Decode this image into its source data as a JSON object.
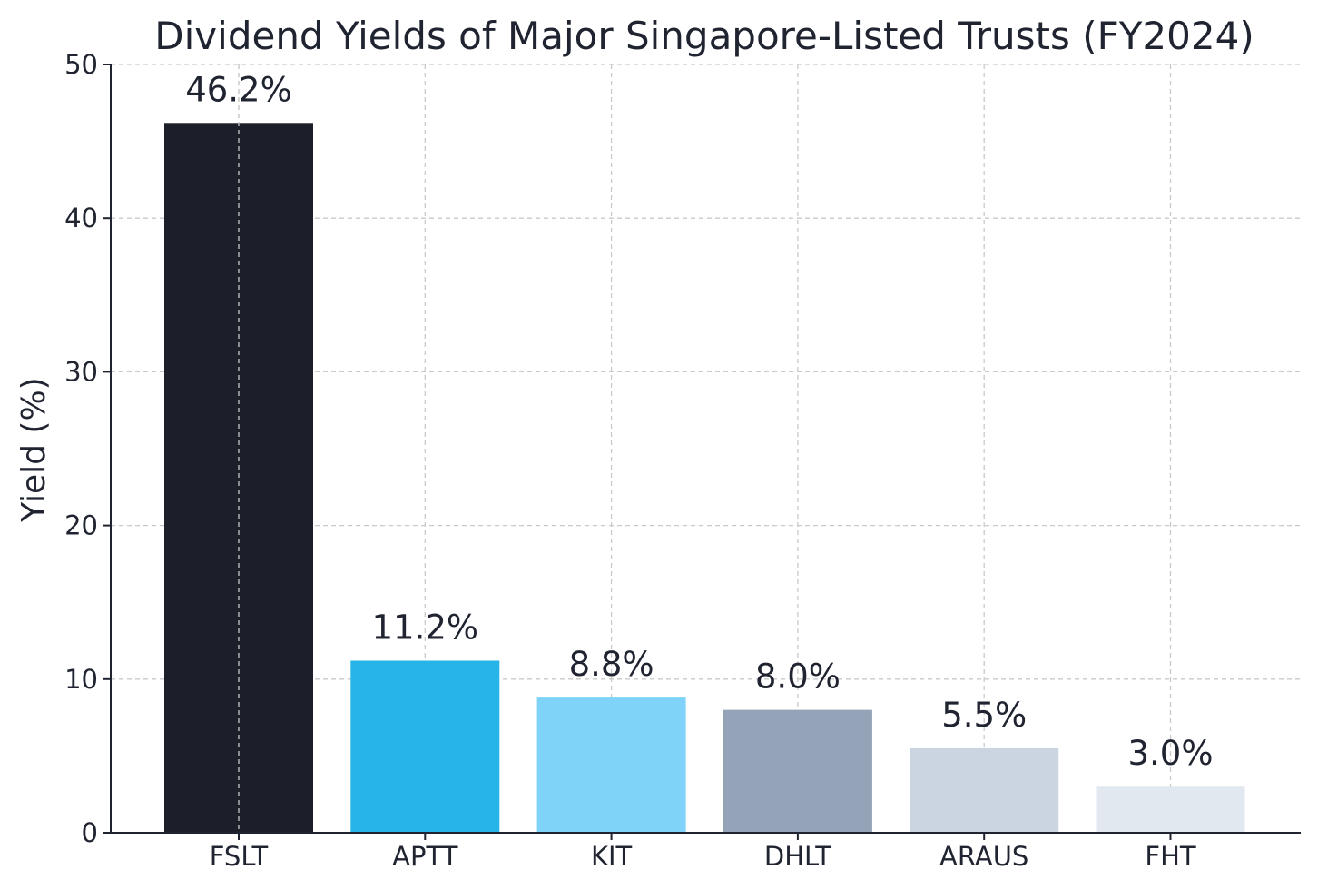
{
  "chart_data": {
    "type": "bar",
    "title": "Dividend Yields of Major Singapore-Listed Trusts (FY2024)",
    "xlabel": "",
    "ylabel": "Yield (%)",
    "ylim": [
      0,
      50
    ],
    "y_ticks": [
      0,
      10,
      20,
      30,
      40,
      50
    ],
    "grid": true,
    "categories": [
      "FSLT",
      "APTT",
      "KIT",
      "DHLT",
      "ARAUS",
      "FHT"
    ],
    "values": [
      46.2,
      11.2,
      8.8,
      8.0,
      5.5,
      3.0
    ],
    "data_labels": [
      "46.2%",
      "11.2%",
      "8.8%",
      "8.0%",
      "5.5%",
      "3.0%"
    ],
    "colors": [
      "#1c1f29",
      "#27b4e8",
      "#7fd3f8",
      "#94a3b8",
      "#cbd5e1",
      "#e2e8f0"
    ]
  }
}
